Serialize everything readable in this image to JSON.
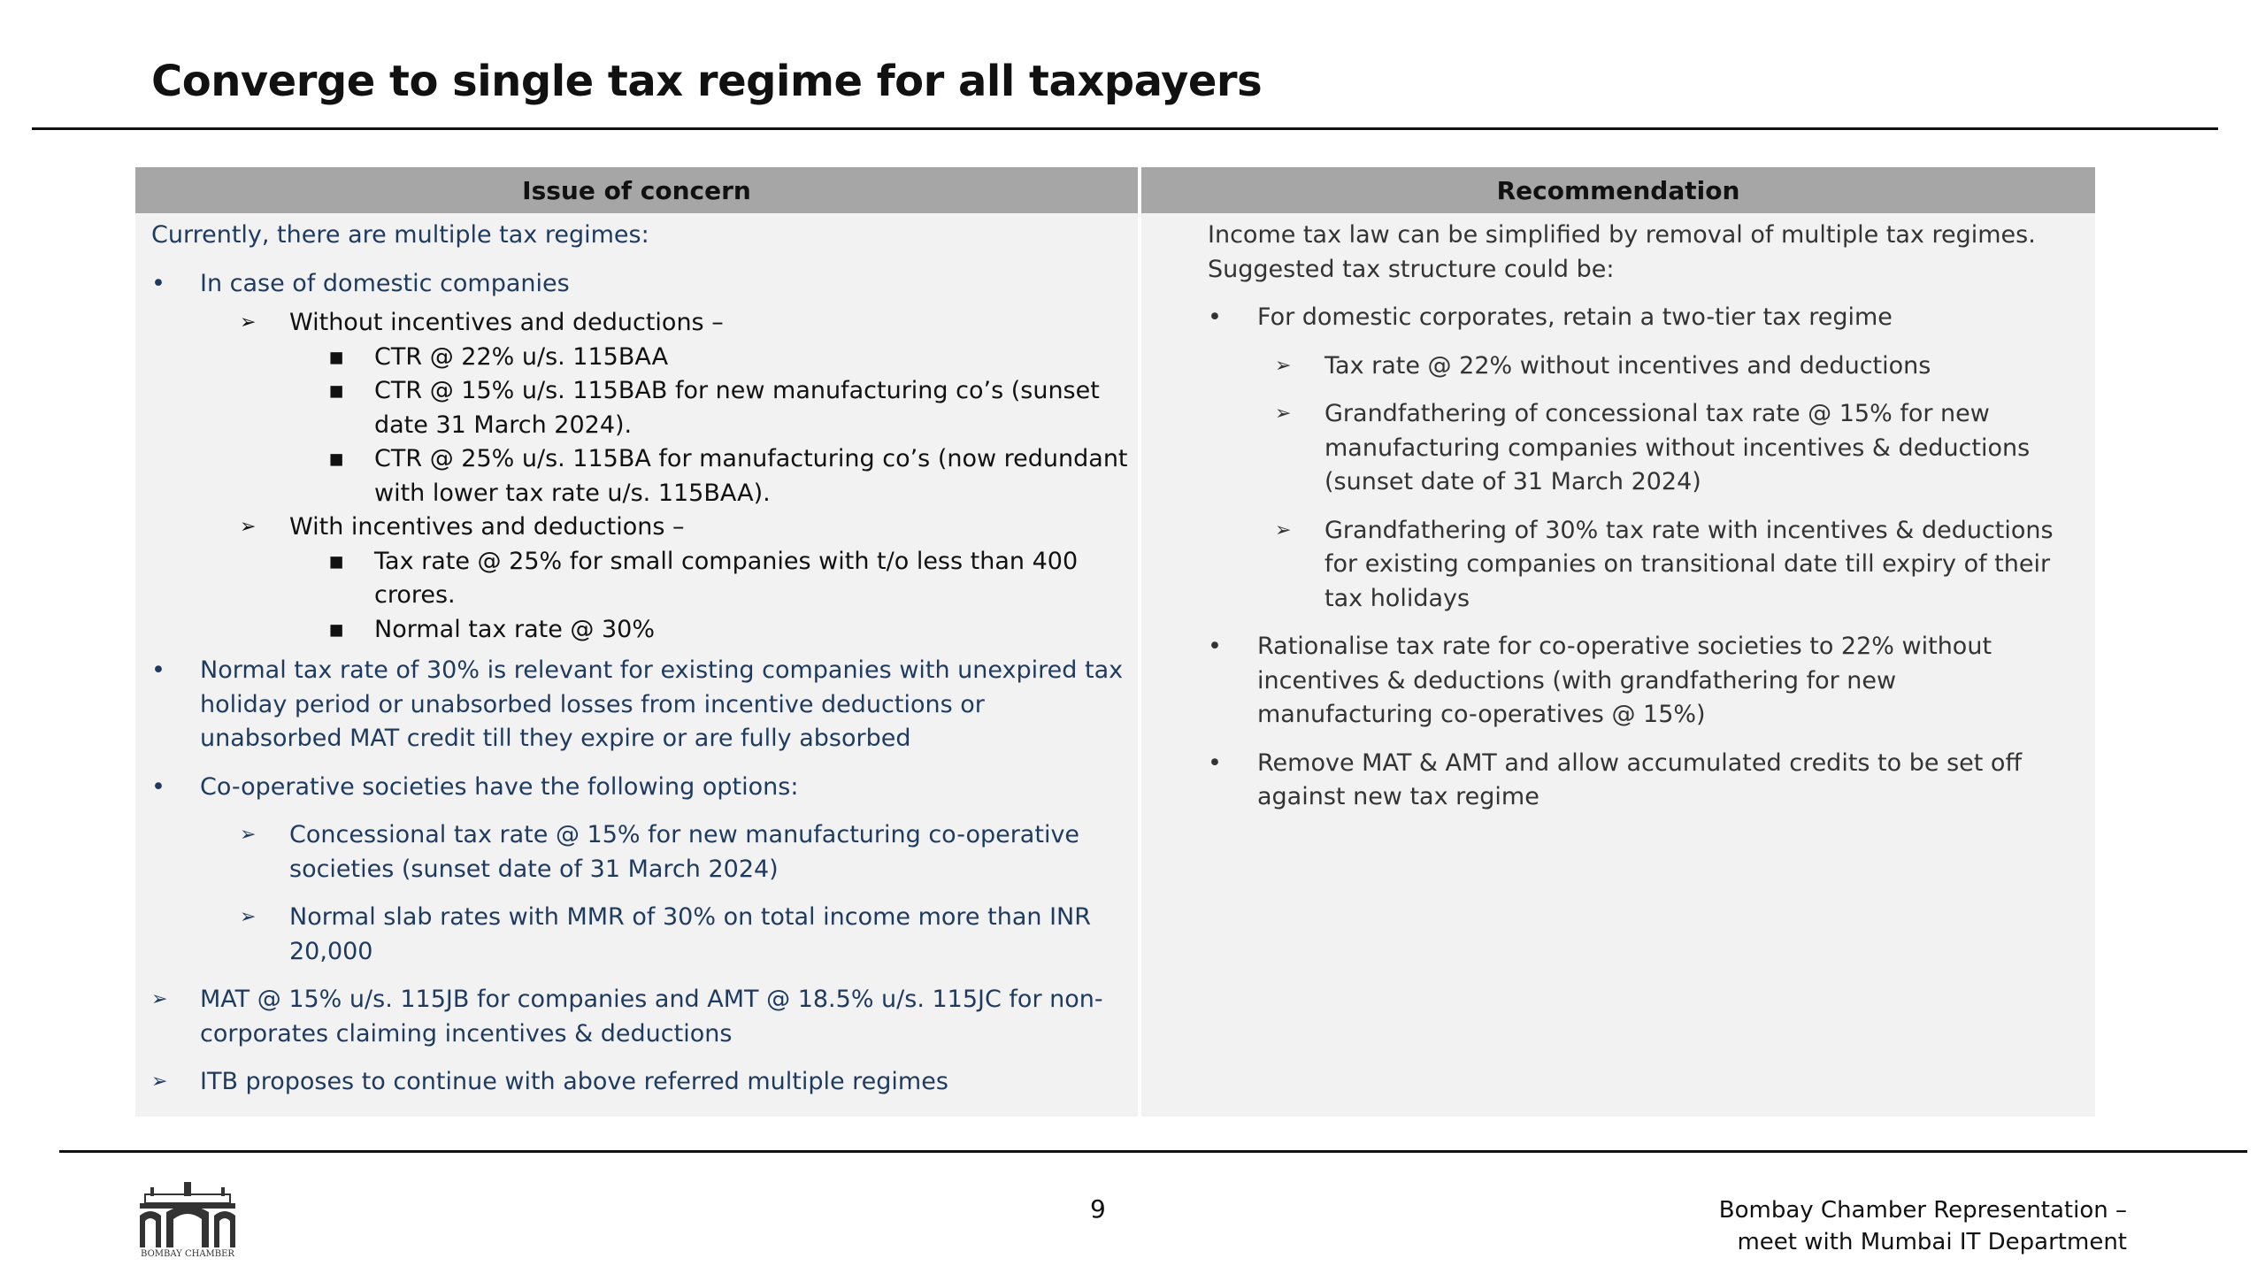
{
  "title": "Converge to single tax regime for all taxpayers",
  "table": {
    "headers": [
      "Issue of concern",
      "Recommendation"
    ],
    "left": {
      "intro": "Currently, there are multiple tax regimes:",
      "items": [
        "In case of domestic companies",
        "Without incentives and deductions –",
        "CTR @ 22% u/s. 115BAA",
        "CTR @ 15% u/s. 115BAB for new manufacturing co’s (sunset date 31 March 2024).",
        "CTR @ 25% u/s. 115BA for manufacturing co’s (now redundant with lower tax rate u/s. 115BAA).",
        "With incentives and deductions –",
        "Tax rate @ 25% for small companies with t/o less than 400 crores.",
        "Normal tax rate @ 30%",
        "Normal tax rate of 30% is relevant for existing companies with unexpired tax holiday period or unabsorbed losses from incentive deductions or unabsorbed MAT credit till they expire or are fully absorbed",
        "Co-operative societies have the following options:",
        "Concessional tax rate @ 15% for new manufacturing co-operative societies (sunset date of 31 March 2024)",
        "Normal slab rates with MMR of 30% on total income more than INR 20,000",
        "MAT @ 15% u/s. 115JB for companies and AMT @ 18.5% u/s. 115JC for non-corporates claiming incentives & deductions",
        "ITB proposes to continue with above referred multiple regimes"
      ]
    },
    "right": {
      "intro": "Income tax law can be simplified by removal of multiple tax regimes. Suggested tax structure could be:",
      "items": [
        "For domestic corporates, retain a two-tier tax regime",
        "Tax rate @ 22% without incentives and deductions",
        "Grandfathering of concessional tax rate @ 15% for new manufacturing companies without incentives & deductions (sunset date of 31 March 2024)",
        "Grandfathering of 30% tax rate with incentives & deductions for existing companies on transitional date till expiry of their tax holidays",
        "Rationalise tax rate for co-operative societies to 22% without incentives & deductions (with grandfathering for new manufacturing co-operatives @ 15%)",
        "Remove MAT & AMT and allow accumulated credits to be set off against new tax regime"
      ]
    }
  },
  "footer": {
    "logo_text": "BOMBAY CHAMBER",
    "page": "9",
    "org": [
      "Bombay Chamber Representation –",
      "meet with Mumbai IT Department"
    ]
  }
}
